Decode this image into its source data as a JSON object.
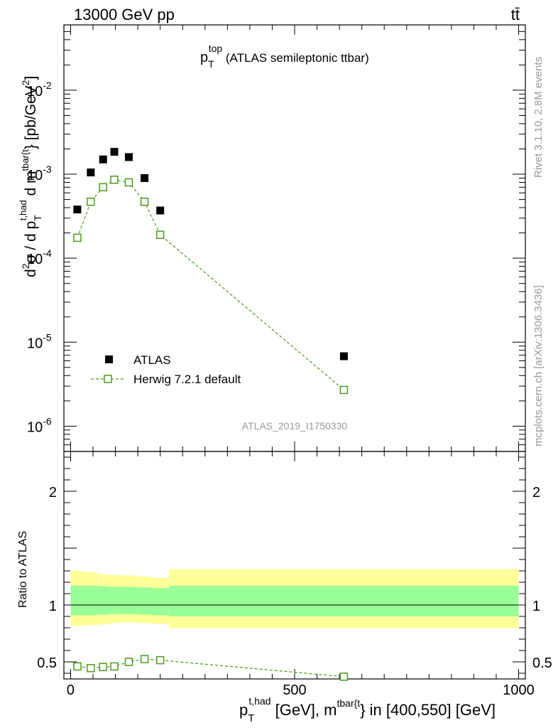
{
  "header": {
    "left": "13000 GeV pp",
    "right": "tt̄"
  },
  "side_labels": {
    "rivet": "Rivet 3.1.10,  2.8M events",
    "mcplots": "mcplots.cern.ch [arXiv:1306.3436]"
  },
  "watermark": "ATLAS_2019_I1750330",
  "plot_title": {
    "main": "p",
    "sub": "T",
    "sup": "top",
    "rest": " (ATLAS semileptonic ttbar)"
  },
  "ylabel": {
    "p1": "d",
    "p1_sup": "2",
    "p2": "σ  /  d p",
    "p2_sub": "T",
    "p2_sup": "t,had",
    "p3": " d m",
    "p3_sup": "tbar{t",
    "p4": "} [pb/GeV",
    "p4_sup": "2",
    "p5": "]"
  },
  "xlabel": {
    "p1": "p",
    "p1_sub": "T",
    "p1_sup": "t,had",
    "p2": " [GeV], m",
    "p2_sup": "tbar{t",
    "p3": "} in [400,550] [GeV]"
  },
  "ratio_ylabel": "Ratio to ATLAS",
  "legend": {
    "data": "ATLAS",
    "mc": "Herwig 7.2.1 default"
  },
  "colors": {
    "mc": "#4a9a1a",
    "band_inner": "#99ff99",
    "band_outer": "#ffff99",
    "data": "#000000"
  },
  "chart_data": {
    "type": "scatter",
    "x": [
      15,
      45,
      72.5,
      97.5,
      130,
      165,
      200,
      610
    ],
    "xlim": [
      -15,
      1015
    ],
    "main_ylim": [
      5e-07,
      0.06
    ],
    "ratio_ylim": [
      0.35,
      2.35
    ],
    "xticks": [
      "0",
      "500",
      "1000"
    ],
    "xtick_values": [
      0,
      500,
      1000
    ],
    "ratio_yticks": [
      "0.5",
      "1",
      "2"
    ],
    "ratio_ytick_values": [
      0.5,
      1,
      2
    ],
    "main_yticks": [
      {
        "base": "10",
        "exp": "-2",
        "value": 0.01
      },
      {
        "base": "10",
        "exp": "-3",
        "value": 0.001
      },
      {
        "base": "10",
        "exp": "-4",
        "value": 0.0001
      },
      {
        "base": "10",
        "exp": "-5",
        "value": 1e-05
      },
      {
        "base": "10",
        "exp": "-6",
        "value": 1e-06
      }
    ],
    "series": [
      {
        "name": "ATLAS",
        "values": [
          0.00038,
          0.00105,
          0.0015,
          0.00185,
          0.0016,
          0.0009,
          0.00037,
          6.8e-06
        ]
      },
      {
        "name": "Herwig 7.2.1 default",
        "values": [
          0.000175,
          0.00047,
          0.0007,
          0.00086,
          0.0008,
          0.00047,
          0.00019,
          2.7e-06
        ]
      }
    ],
    "ratio": {
      "name": "Herwig 7.2.1 default / ATLAS",
      "values": [
        0.46,
        0.445,
        0.455,
        0.46,
        0.5,
        0.525,
        0.515,
        0.37
      ]
    },
    "bands": {
      "bin_edges": [
        0,
        30,
        60,
        85,
        110,
        150,
        180,
        220,
        1000
      ],
      "inner_low": [
        0.91,
        0.91,
        0.915,
        0.92,
        0.92,
        0.915,
        0.91,
        0.9
      ],
      "inner_high": [
        1.17,
        1.17,
        1.165,
        1.16,
        1.16,
        1.155,
        1.15,
        1.17
      ],
      "outer_low": [
        0.815,
        0.82,
        0.83,
        0.84,
        0.845,
        0.84,
        0.835,
        0.795
      ],
      "outer_high": [
        1.3,
        1.29,
        1.27,
        1.265,
        1.26,
        1.25,
        1.24,
        1.315
      ]
    }
  }
}
